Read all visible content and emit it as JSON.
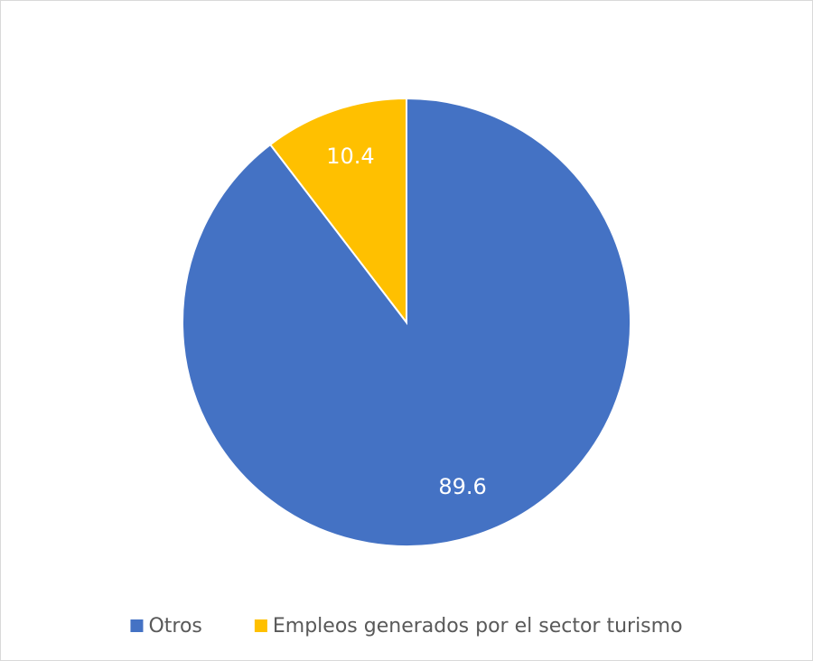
{
  "chart_data": {
    "type": "pie",
    "categories": [
      "Otros",
      "Empleos generados por el sector turismo"
    ],
    "values": [
      89.6,
      10.4
    ],
    "colors": [
      "#4472c4",
      "#ffc000"
    ],
    "legend": "bottom"
  }
}
